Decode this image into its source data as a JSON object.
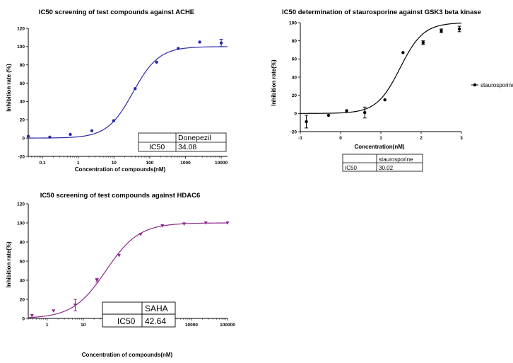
{
  "chart_data": [
    {
      "id": "ache",
      "type": "scatter",
      "title": "IC50 screening of test compounds against ACHE",
      "xlabel": "Concentration of compounds(nM)",
      "ylabel": "Inhibition rate (%)",
      "xscale": "log",
      "xlim": [
        0.04,
        15000
      ],
      "ylim": [
        -20,
        120
      ],
      "xticks": [
        0.1,
        1,
        10,
        100,
        1000,
        10000
      ],
      "xtick_labels": [
        "0.1",
        "1",
        "10",
        "100",
        "1000",
        "10000"
      ],
      "yticks": [
        -20,
        0,
        20,
        40,
        60,
        80,
        100,
        120
      ],
      "ytick_labels": [
        "-20",
        "0",
        "20",
        "40",
        "60",
        "80",
        "100",
        "120"
      ],
      "color": "#2a2aa8",
      "marker": "circle",
      "fit": {
        "bottom": 0,
        "top": 100,
        "ic50": 34.08,
        "hill": 1.2
      },
      "points": [
        {
          "x": 0.04,
          "y": 2
        },
        {
          "x": 0.16,
          "y": 1
        },
        {
          "x": 0.6,
          "y": 4
        },
        {
          "x": 2.4,
          "y": 8
        },
        {
          "x": 9.8,
          "y": 19
        },
        {
          "x": 39,
          "y": 54
        },
        {
          "x": 156,
          "y": 83
        },
        {
          "x": 625,
          "y": 98
        },
        {
          "x": 2500,
          "y": 105
        },
        {
          "x": 10000,
          "y": 104,
          "err": 4
        }
      ],
      "table": {
        "header": "Donepezil",
        "label": "IC50",
        "value": "34.08"
      }
    },
    {
      "id": "gsk3",
      "type": "scatter",
      "title": "IC50 determination of staurosporine against GSK3 beta kinase",
      "xlabel": "Concentration(nM)",
      "ylabel": "Inhibition rate(%)",
      "xscale": "linear",
      "xlim": [
        -1,
        3
      ],
      "ylim": [
        -20,
        100
      ],
      "xticks": [
        -1,
        0,
        1,
        2,
        3
      ],
      "xtick_labels": [
        "-1",
        "0",
        "1",
        "2",
        "3"
      ],
      "yticks": [
        -20,
        0,
        20,
        40,
        60,
        80,
        100
      ],
      "ytick_labels": [
        "-20",
        "0",
        "20",
        "40",
        "60",
        "80",
        "100"
      ],
      "color": "#000000",
      "marker": "circle",
      "fit": {
        "bottom": 0,
        "top": 100,
        "logic50": 1.477,
        "hill": 1.5
      },
      "points": [
        {
          "x": -0.85,
          "y": -9,
          "err": 7
        },
        {
          "x": -0.3,
          "y": -2
        },
        {
          "x": 0.15,
          "y": 3
        },
        {
          "x": 0.6,
          "y": 1,
          "err": 6
        },
        {
          "x": 1.1,
          "y": 15
        },
        {
          "x": 1.55,
          "y": 67
        },
        {
          "x": 2.05,
          "y": 78,
          "err": 2
        },
        {
          "x": 2.5,
          "y": 91,
          "err": 2
        },
        {
          "x": 2.95,
          "y": 93,
          "err": 3
        }
      ],
      "legend": "staurosporine",
      "legend_position": "right",
      "table": {
        "header": "staurosporine",
        "label": "IC50",
        "value": "30.02"
      }
    },
    {
      "id": "hdac6",
      "type": "scatter",
      "title": "IC50 screening of test compounds against  HDAC6",
      "xlabel": "Concentration of compounds(nM)",
      "ylabel": "Inhibition rate(%)",
      "xscale": "log",
      "xlim": [
        0.3,
        100000
      ],
      "ylim": [
        0,
        120
      ],
      "xticks": [
        1,
        10,
        100,
        1000,
        10000,
        100000
      ],
      "xtick_labels": [
        "1",
        "10",
        "100",
        "1000",
        "10000",
        "100000"
      ],
      "yticks": [
        0,
        20,
        40,
        60,
        80,
        100,
        120
      ],
      "ytick_labels": [
        "0",
        "20",
        "40",
        "60",
        "80",
        "100",
        "120"
      ],
      "color": "#8a2a8a",
      "marker": "triangle-down",
      "fit": {
        "bottom": 0,
        "top": 100,
        "ic50": 42.64,
        "hill": 0.95
      },
      "points": [
        {
          "x": 0.38,
          "y": 3
        },
        {
          "x": 1.5,
          "y": 8
        },
        {
          "x": 6,
          "y": 14,
          "err": 6
        },
        {
          "x": 24,
          "y": 40,
          "err": 2
        },
        {
          "x": 98,
          "y": 66
        },
        {
          "x": 390,
          "y": 88
        },
        {
          "x": 1560,
          "y": 97
        },
        {
          "x": 6250,
          "y": 99
        },
        {
          "x": 25000,
          "y": 100
        },
        {
          "x": 100000,
          "y": 100
        }
      ],
      "table": {
        "header": "SAHA",
        "label": "IC50",
        "value": "42.64"
      }
    }
  ]
}
